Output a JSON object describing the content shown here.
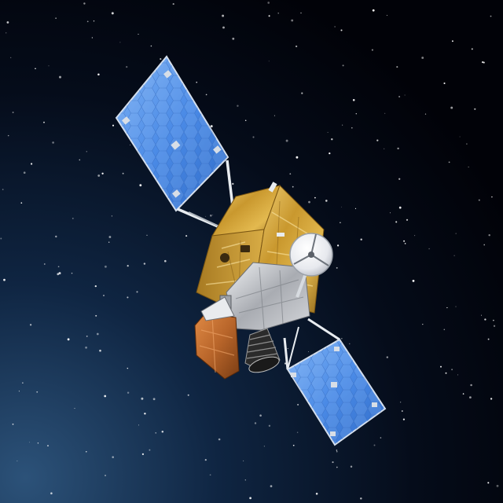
{
  "scene": {
    "subject": "satellite",
    "background": "starfield",
    "colors": {
      "space_top": "#02040a",
      "space_mid": "#071226",
      "space_glow": "#1d3f66",
      "panel_blue": "#4a8ae6",
      "panel_blue_light": "#7fb3f5",
      "gold_foil": "#c9982e",
      "gold_light": "#f1d27a",
      "silver": "#c9cbcf",
      "copper": "#b8652a",
      "strut": "#e8ecf0"
    },
    "icons": [
      "solar-panel-upper",
      "solar-panel-lower",
      "dish-antenna",
      "thruster-nozzle"
    ]
  }
}
